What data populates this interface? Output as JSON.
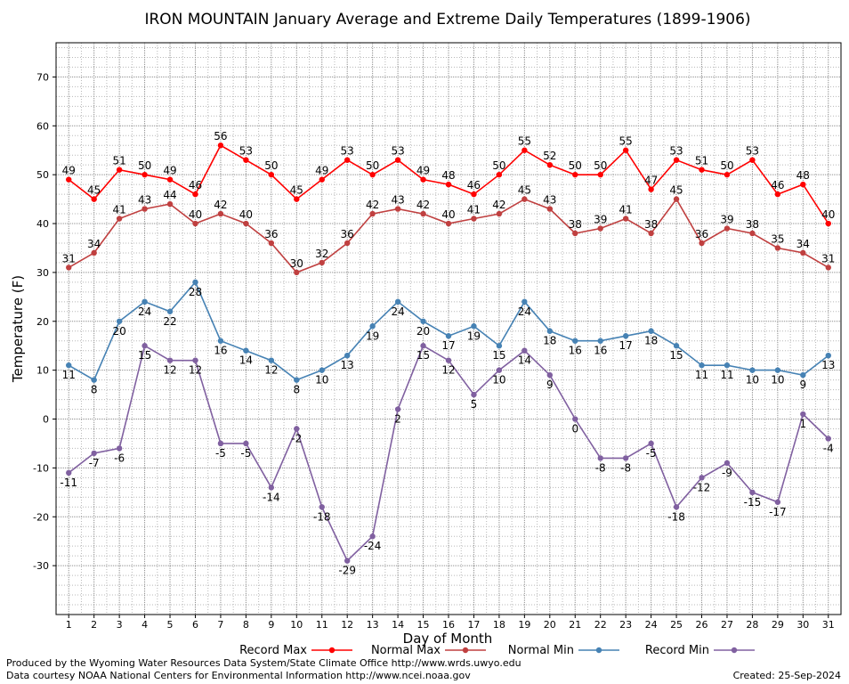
{
  "chart_data": {
    "type": "line",
    "title": "IRON MOUNTAIN January Average and Extreme Daily Temperatures (1899-1906)",
    "xlabel": "Day of Month",
    "ylabel": "Temperature (F)",
    "ylim": [
      -40,
      77
    ],
    "xlim": [
      0.5,
      31.5
    ],
    "yticks": [
      -30,
      -20,
      -10,
      0,
      10,
      20,
      30,
      40,
      50,
      60,
      70
    ],
    "x": [
      1,
      2,
      3,
      4,
      5,
      6,
      7,
      8,
      9,
      10,
      11,
      12,
      13,
      14,
      15,
      16,
      17,
      18,
      19,
      20,
      21,
      22,
      23,
      24,
      25,
      26,
      27,
      28,
      29,
      30,
      31
    ],
    "grid": true,
    "legend_position": "bottom",
    "series": [
      {
        "name": "Record Max",
        "color": "#ff0000",
        "label_pos": "above",
        "values": [
          49,
          45,
          51,
          50,
          49,
          46,
          56,
          53,
          50,
          45,
          49,
          53,
          50,
          53,
          49,
          48,
          46,
          50,
          55,
          52,
          50,
          50,
          55,
          47,
          53,
          51,
          50,
          53,
          46,
          48,
          40
        ]
      },
      {
        "name": "Normal Max",
        "color": "#c04040",
        "label_pos": "above",
        "values": [
          31,
          34,
          41,
          43,
          44,
          40,
          42,
          40,
          36,
          30,
          32,
          36,
          42,
          43,
          42,
          40,
          41,
          42,
          45,
          43,
          38,
          39,
          41,
          38,
          45,
          36,
          39,
          38,
          35,
          34,
          31
        ]
      },
      {
        "name": "Normal Min",
        "color": "#4682b4",
        "label_pos": "below",
        "values": [
          11,
          8,
          20,
          24,
          22,
          28,
          16,
          14,
          12,
          8,
          10,
          13,
          19,
          24,
          20,
          17,
          19,
          15,
          24,
          18,
          16,
          16,
          17,
          18,
          15,
          11,
          11,
          10,
          10,
          9,
          13
        ]
      },
      {
        "name": "Record Min",
        "color": "#8060a0",
        "label_pos": "below",
        "values": [
          -11,
          -7,
          -6,
          15,
          12,
          12,
          -5,
          -5,
          -14,
          -2,
          -18,
          -29,
          -24,
          2,
          15,
          12,
          5,
          10,
          14,
          9,
          0,
          -8,
          -8,
          -5,
          -18,
          -12,
          -9,
          -15,
          -17,
          1,
          -4
        ]
      }
    ]
  },
  "footer": {
    "produced_by": "Produced by the Wyoming Water Resources Data System/State Climate Office http://www.wrds.uwyo.edu",
    "courtesy": "Data courtesy NOAA National Centers for Environmental Information http://www.ncei.noaa.gov",
    "created": "Created: 25-Sep-2024"
  }
}
